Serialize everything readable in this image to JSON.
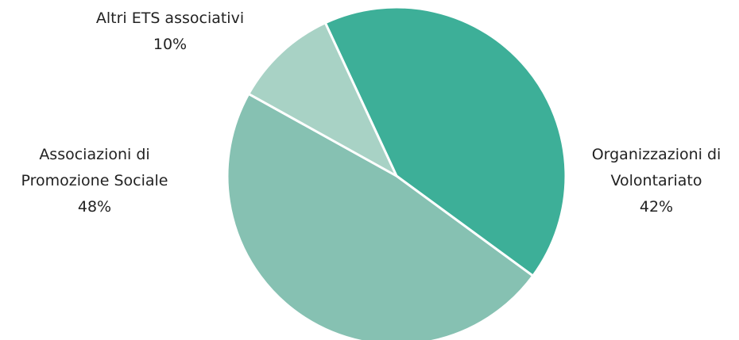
{
  "chart_data": {
    "type": "pie",
    "categories": [
      "Organizzazioni di Volontariato",
      "Associazioni di Promozione Sociale",
      "Altri ETS associativi"
    ],
    "values": [
      42,
      48,
      10
    ],
    "value_labels": [
      "42%",
      "48%",
      "10%"
    ],
    "colors": [
      "#3daf98",
      "#86c1b2",
      "#a8d2c5"
    ]
  }
}
